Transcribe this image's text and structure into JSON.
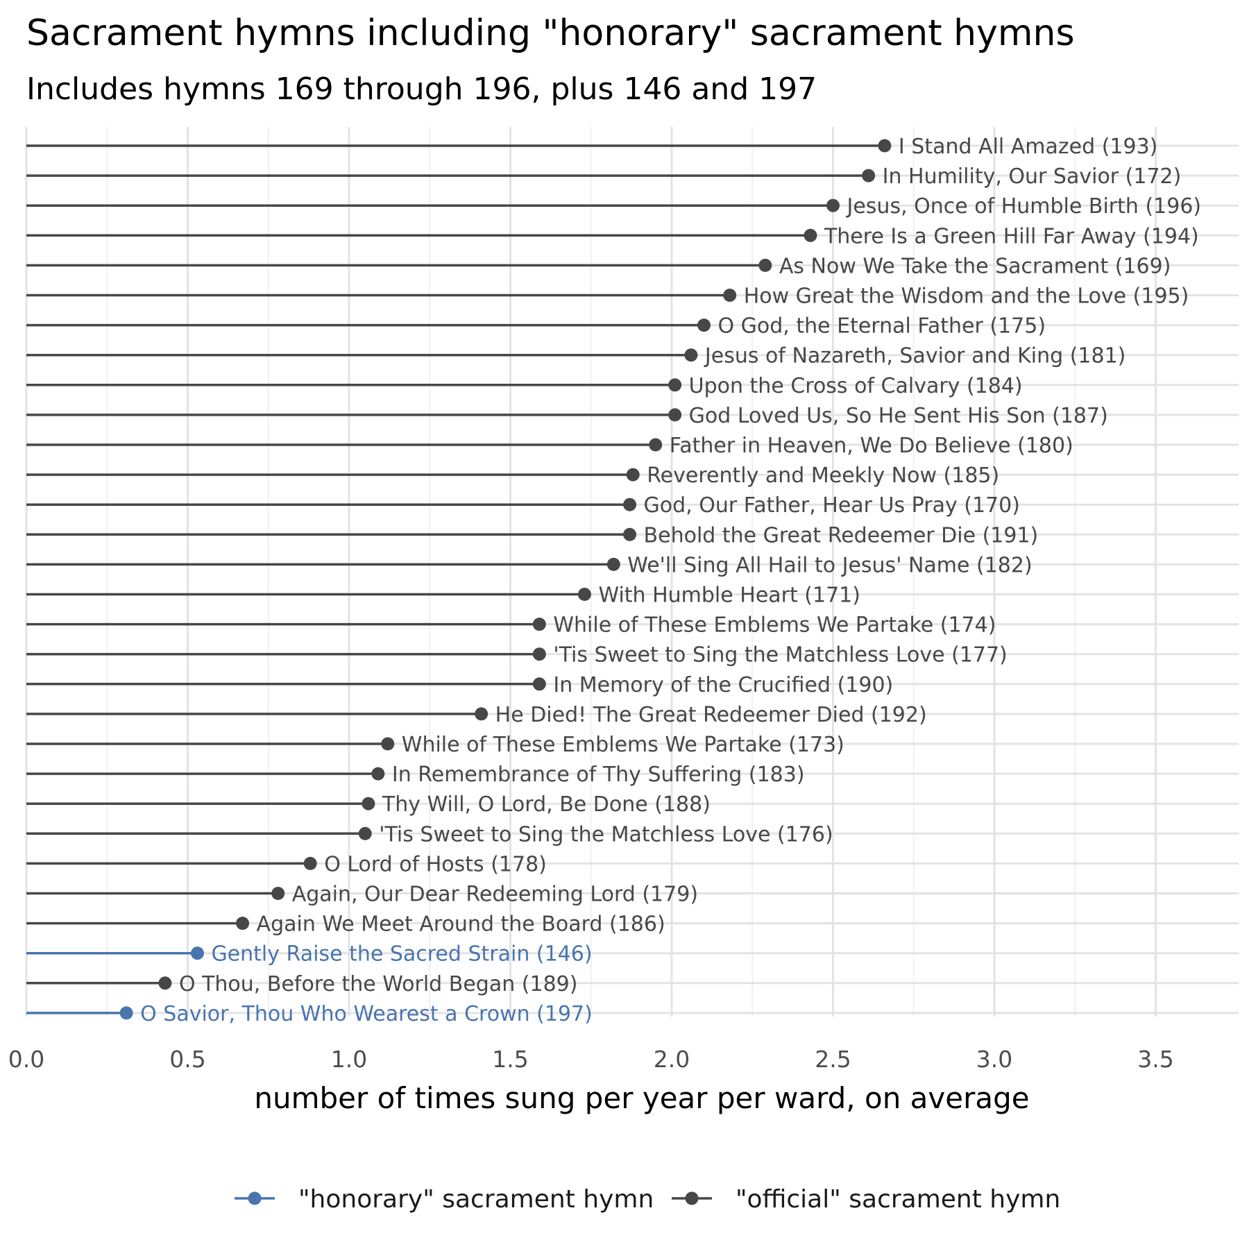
{
  "chart_data": {
    "type": "lollipop",
    "title": "Sacrament hymns including \"honorary\" sacrament hymns",
    "subtitle": "Includes hymns 169 through 196, plus 146 and 197",
    "xlabel": "number of times sung per year per ward, on average",
    "xlim": [
      0,
      3.75
    ],
    "xticks": [
      "0.0",
      "0.5",
      "1.0",
      "1.5",
      "2.0",
      "2.5",
      "3.0",
      "3.5"
    ],
    "grid": true,
    "legend_position": "bottom",
    "series": [
      {
        "name": "\"honorary\" sacrament hymn",
        "color": "#4a74ad"
      },
      {
        "name": "\"official\" sacrament hymn",
        "color": "#474747"
      }
    ],
    "points": [
      {
        "label": "I Stand All Amazed (193)",
        "value": 2.66,
        "group": 1
      },
      {
        "label": "In Humility, Our Savior (172)",
        "value": 2.61,
        "group": 1
      },
      {
        "label": "Jesus, Once of Humble Birth (196)",
        "value": 2.5,
        "group": 1
      },
      {
        "label": "There Is a Green Hill Far Away (194)",
        "value": 2.43,
        "group": 1
      },
      {
        "label": "As Now We Take the Sacrament (169)",
        "value": 2.29,
        "group": 1
      },
      {
        "label": "How Great the Wisdom and the Love (195)",
        "value": 2.18,
        "group": 1
      },
      {
        "label": "O God, the Eternal Father (175)",
        "value": 2.1,
        "group": 1
      },
      {
        "label": "Jesus of Nazareth, Savior and King (181)",
        "value": 2.06,
        "group": 1
      },
      {
        "label": "Upon the Cross of Calvary (184)",
        "value": 2.01,
        "group": 1
      },
      {
        "label": "God Loved Us, So He Sent His Son (187)",
        "value": 2.01,
        "group": 1
      },
      {
        "label": "Father in Heaven, We Do Believe (180)",
        "value": 1.95,
        "group": 1
      },
      {
        "label": "Reverently and Meekly Now (185)",
        "value": 1.88,
        "group": 1
      },
      {
        "label": "God, Our Father, Hear Us Pray (170)",
        "value": 1.87,
        "group": 1
      },
      {
        "label": "Behold the Great Redeemer Die (191)",
        "value": 1.87,
        "group": 1
      },
      {
        "label": "We'll Sing All Hail to Jesus' Name (182)",
        "value": 1.82,
        "group": 1
      },
      {
        "label": "With Humble Heart (171)",
        "value": 1.73,
        "group": 1
      },
      {
        "label": "While of These Emblems We Partake (174)",
        "value": 1.59,
        "group": 1
      },
      {
        "label": "'Tis Sweet to Sing the Matchless Love (177)",
        "value": 1.59,
        "group": 1
      },
      {
        "label": "In Memory of the Crucified (190)",
        "value": 1.59,
        "group": 1
      },
      {
        "label": "He Died! The Great Redeemer Died (192)",
        "value": 1.41,
        "group": 1
      },
      {
        "label": "While of These Emblems We Partake (173)",
        "value": 1.12,
        "group": 1
      },
      {
        "label": "In Remembrance of Thy Suffering (183)",
        "value": 1.09,
        "group": 1
      },
      {
        "label": "Thy Will, O Lord, Be Done (188)",
        "value": 1.06,
        "group": 1
      },
      {
        "label": "'Tis Sweet to Sing the Matchless Love (176)",
        "value": 1.05,
        "group": 1
      },
      {
        "label": "O Lord of Hosts (178)",
        "value": 0.88,
        "group": 1
      },
      {
        "label": "Again, Our Dear Redeeming Lord (179)",
        "value": 0.78,
        "group": 1
      },
      {
        "label": "Again We Meet Around the Board (186)",
        "value": 0.67,
        "group": 1
      },
      {
        "label": "Gently Raise the Sacred Strain (146)",
        "value": 0.53,
        "group": 0
      },
      {
        "label": "O Thou, Before the World Began (189)",
        "value": 0.43,
        "group": 1
      },
      {
        "label": "O Savior, Thou Who Wearest a Crown (197)",
        "value": 0.31,
        "group": 0
      }
    ]
  }
}
